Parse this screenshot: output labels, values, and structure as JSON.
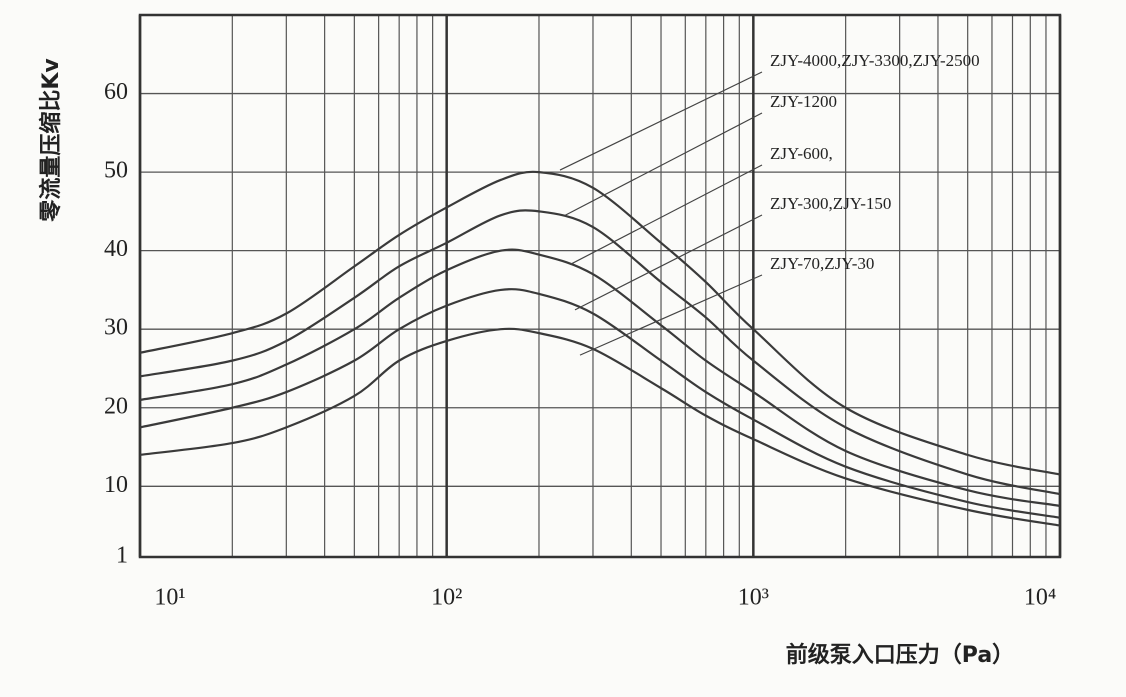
{
  "chart_data": {
    "type": "line",
    "x_label": "前级泵入口压力（Pa）",
    "y_label": "零流量压缩比Kv",
    "x": [
      10,
      20,
      30,
      50,
      70,
      100,
      150,
      200,
      300,
      500,
      700,
      1000,
      2000,
      5000,
      10000
    ],
    "series": [
      {
        "name": "ZJY-4000,ZJY-3300,ZJY-2500",
        "color": "#3a3a3a",
        "values": [
          27,
          29.5,
          32,
          38,
          42,
          45.5,
          49,
          50,
          48,
          41,
          36,
          30,
          20,
          14,
          11.5
        ]
      },
      {
        "name": "ZJY-1200",
        "color": "#3a3a3a",
        "values": [
          24,
          26,
          28.5,
          34,
          38,
          41,
          44.5,
          45,
          43,
          36,
          31.5,
          26,
          17.5,
          11.5,
          9
        ]
      },
      {
        "name": "ZJY-600,",
        "color": "#3a3a3a",
        "values": [
          21,
          23,
          25.5,
          30,
          34,
          37.5,
          40,
          39.5,
          37,
          30.5,
          26,
          22,
          14.5,
          9.5,
          7.5
        ]
      },
      {
        "name": "ZJY-300,ZJY-150",
        "color": "#3a3a3a",
        "values": [
          17.5,
          20,
          22,
          26,
          30,
          33,
          35,
          34.5,
          32,
          26,
          22,
          18.5,
          12.5,
          8,
          6
        ]
      },
      {
        "name": "ZJY-70,ZJY-30",
        "color": "#3a3a3a",
        "values": [
          14,
          15.5,
          17.5,
          21.5,
          26,
          28.5,
          30,
          29.5,
          27.5,
          22.5,
          19,
          16,
          11,
          7,
          5
        ]
      }
    ],
    "xlim": [
      10,
      10000
    ],
    "x_log": true,
    "xticks": [
      {
        "value": 10,
        "label": "10¹"
      },
      {
        "value": 100,
        "label": "10²"
      },
      {
        "value": 1000,
        "label": "10³"
      },
      {
        "value": 10000,
        "label": "10⁴"
      }
    ],
    "ylim": [
      1,
      70
    ],
    "yticks": [
      1,
      10,
      20,
      30,
      40,
      50,
      60
    ],
    "grid": true,
    "minor_grid": true
  }
}
